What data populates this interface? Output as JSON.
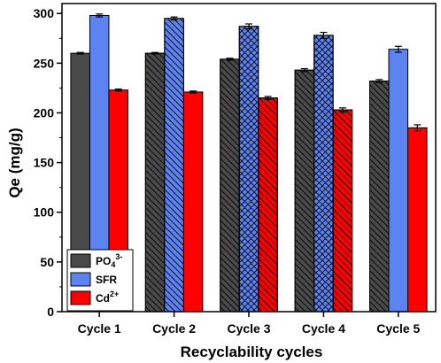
{
  "chart_data": {
    "type": "bar",
    "xlabel": "Recyclability cycles",
    "ylabel": "Qe (mg/g)",
    "ylim": [
      0,
      310
    ],
    "yticks": [
      0,
      50,
      100,
      150,
      200,
      250,
      300
    ],
    "categories": [
      "Cycle 1",
      "Cycle 2",
      "Cycle 3",
      "Cycle 4",
      "Cycle 5"
    ],
    "series": [
      {
        "name": "PO4 3-",
        "legend_base": "PO",
        "legend_sub": "4",
        "legend_sup": "3-",
        "color": "#4a4a4a",
        "values": [
          260,
          260,
          254,
          243,
          232
        ],
        "errors": [
          0.8,
          0.8,
          1.0,
          1.5,
          1.5
        ],
        "patterns": [
          "none",
          "backslash",
          "backslash",
          "backslash",
          "backslash"
        ]
      },
      {
        "name": "SFR",
        "legend_base": "SFR",
        "legend_sub": "",
        "legend_sup": "",
        "color": "#5b84f1",
        "values": [
          298,
          295,
          287,
          278,
          264
        ],
        "errors": [
          1.5,
          1.5,
          2.5,
          3.0,
          3.0
        ],
        "patterns": [
          "none",
          "backslash",
          "cross",
          "cross",
          "none"
        ]
      },
      {
        "name": "Cd2+",
        "legend_base": "Cd",
        "legend_sub": "",
        "legend_sup": "2+",
        "color": "#ff0000",
        "values": [
          223,
          221,
          215,
          203,
          185
        ],
        "errors": [
          1.0,
          1.0,
          1.5,
          2.0,
          3.0
        ],
        "patterns": [
          "none",
          "none",
          "backslash",
          "backslash",
          "none"
        ]
      }
    ],
    "legend_position": "bottom-left",
    "grid": false
  }
}
